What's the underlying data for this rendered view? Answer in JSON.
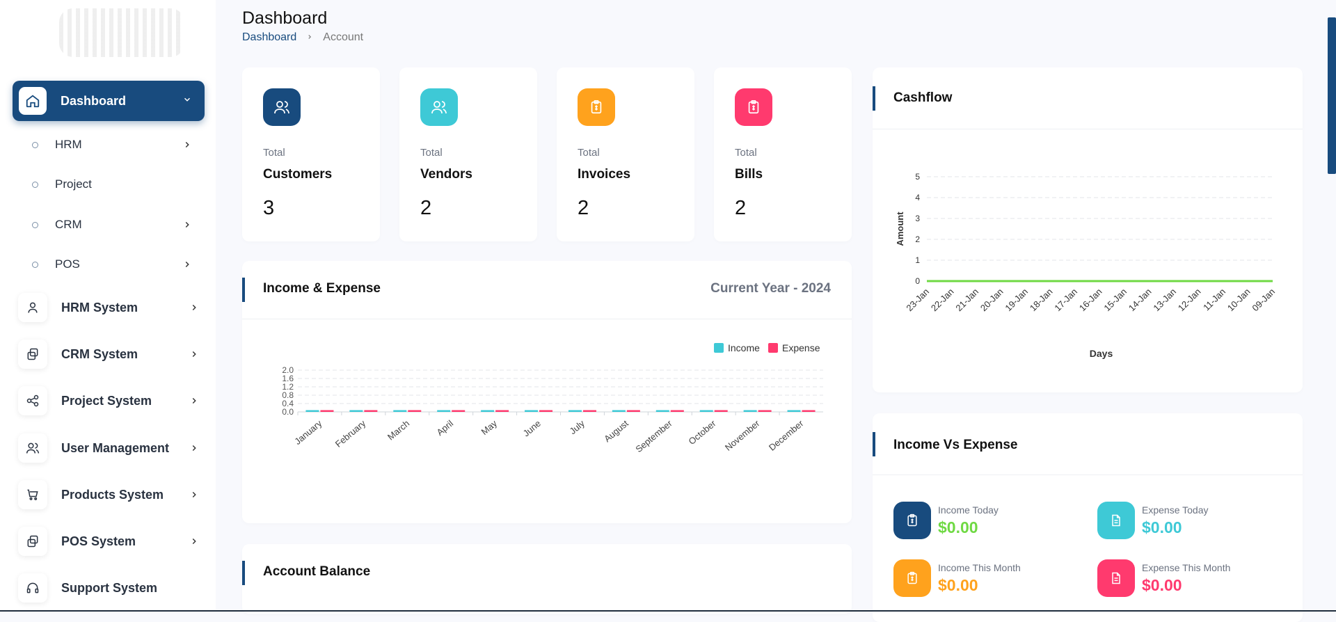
{
  "sidebar": {
    "active": {
      "label": "Dashboard",
      "icon": "home-icon"
    },
    "sub_items": [
      {
        "label": "HRM",
        "has_chevron": true
      },
      {
        "label": "Project",
        "has_chevron": false
      },
      {
        "label": "CRM",
        "has_chevron": true
      },
      {
        "label": "POS",
        "has_chevron": true
      }
    ],
    "main_items": [
      {
        "label": "HRM System",
        "icon": "user-icon"
      },
      {
        "label": "CRM System",
        "icon": "layers-icon"
      },
      {
        "label": "Project System",
        "icon": "share-icon"
      },
      {
        "label": "User Management",
        "icon": "users-icon"
      },
      {
        "label": "Products System",
        "icon": "cart-icon"
      },
      {
        "label": "POS System",
        "icon": "layers-icon"
      },
      {
        "label": "Support System",
        "icon": "headphones-icon"
      }
    ]
  },
  "header": {
    "title": "Dashboard",
    "breadcrumb": [
      "Dashboard",
      "Account"
    ]
  },
  "stats": [
    {
      "small": "Total",
      "name": "Customers",
      "value": "3",
      "color": "#184b7e",
      "icon": "users-icon"
    },
    {
      "small": "Total",
      "name": "Vendors",
      "value": "2",
      "color": "#3ec9d6",
      "icon": "users-icon"
    },
    {
      "small": "Total",
      "name": "Invoices",
      "value": "2",
      "color": "#ffa21d",
      "icon": "clipboard-icon"
    },
    {
      "small": "Total",
      "name": "Bills",
      "value": "2",
      "color": "#ff3a6e",
      "icon": "clipboard-icon"
    }
  ],
  "income_expense": {
    "title": "Income & Expense",
    "period": "Current Year - 2024"
  },
  "account_balance": {
    "title": "Account Balance"
  },
  "cashflow": {
    "title": "Cashflow"
  },
  "income_vs_expense": {
    "title": "Income Vs Expense",
    "items": [
      {
        "label": "Income Today",
        "amount": "$0.00",
        "color": "#184b7e",
        "amount_color": "#6fd943",
        "icon": "clipboard-icon"
      },
      {
        "label": "Expense Today",
        "amount": "$0.00",
        "color": "#3ec9d6",
        "amount_color": "#3ec9d6",
        "icon": "document-icon"
      },
      {
        "label": "Income This Month",
        "amount": "$0.00",
        "color": "#ffa21d",
        "amount_color": "#ffa21d",
        "icon": "clipboard-icon"
      },
      {
        "label": "Expense This Month",
        "amount": "$0.00",
        "color": "#ff3a6e",
        "amount_color": "#ff3a6e",
        "icon": "document-icon"
      }
    ]
  },
  "chart_data": [
    {
      "type": "bar",
      "title": "",
      "categories": [
        "January",
        "February",
        "March",
        "April",
        "May",
        "June",
        "July",
        "August",
        "September",
        "October",
        "November",
        "December"
      ],
      "series": [
        {
          "name": "Income",
          "color": "#3ec9d6",
          "values": [
            0,
            0,
            0,
            0,
            0,
            0,
            0,
            0,
            0,
            0,
            0,
            0
          ]
        },
        {
          "name": "Expense",
          "color": "#ff3a6e",
          "values": [
            0,
            0,
            0,
            0,
            0,
            0,
            0,
            0,
            0,
            0,
            0,
            0
          ]
        }
      ],
      "ylim": [
        0,
        2.0
      ],
      "yticks": [
        "0.0",
        "0.4",
        "0.8",
        "1.2",
        "1.6",
        "2.0"
      ],
      "legend": "top-right",
      "grid": true
    },
    {
      "type": "line",
      "title": "",
      "xlabel": "Days",
      "ylabel": "Amount",
      "x": [
        "23-Jan",
        "22-Jan",
        "21-Jan",
        "20-Jan",
        "19-Jan",
        "18-Jan",
        "17-Jan",
        "16-Jan",
        "15-Jan",
        "14-Jan",
        "13-Jan",
        "12-Jan",
        "11-Jan",
        "10-Jan",
        "09-Jan"
      ],
      "series": [
        {
          "color": "#6fd943",
          "values": [
            0,
            0,
            0,
            0,
            0,
            0,
            0,
            0,
            0,
            0,
            0,
            0,
            0,
            0,
            0
          ]
        }
      ],
      "ylim": [
        0,
        5
      ],
      "yticks": [
        "0",
        "1",
        "2",
        "3",
        "4",
        "5"
      ],
      "grid": true
    }
  ]
}
